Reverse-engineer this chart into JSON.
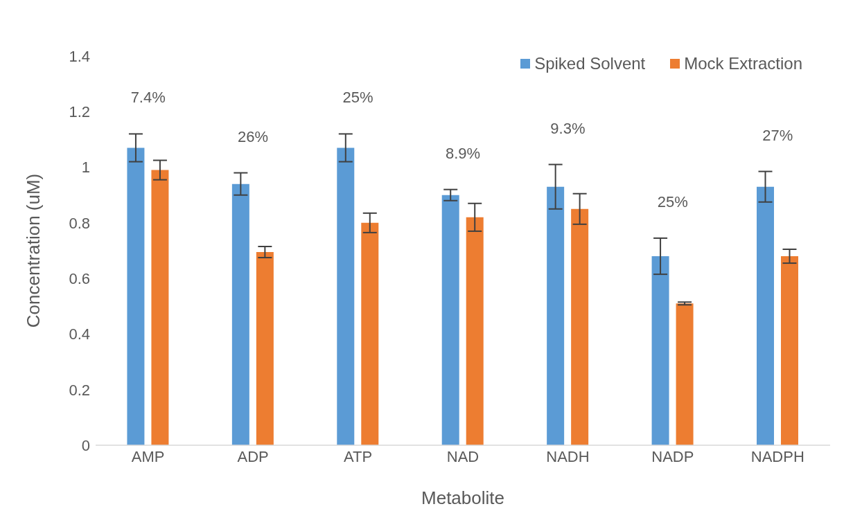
{
  "chart_data": {
    "type": "bar",
    "xlabel": "Metabolite",
    "ylabel": "Concentration (uM)",
    "categories": [
      "AMP",
      "ADP",
      "ATP",
      "NAD",
      "NADH",
      "NADP",
      "NADPH"
    ],
    "series": [
      {
        "name": "Spiked Solvent",
        "color": "#5b9bd5",
        "values": [
          1.07,
          0.94,
          1.07,
          0.9,
          0.93,
          0.68,
          0.93
        ],
        "errors": [
          0.05,
          0.04,
          0.05,
          0.02,
          0.08,
          0.065,
          0.055
        ]
      },
      {
        "name": "Mock Extraction",
        "color": "#ed7d31",
        "values": [
          0.99,
          0.695,
          0.8,
          0.82,
          0.85,
          0.51,
          0.68
        ],
        "errors": [
          0.035,
          0.02,
          0.035,
          0.05,
          0.055,
          0.005,
          0.025
        ]
      }
    ],
    "ylim": [
      0,
      1.4
    ],
    "yticks": [
      0,
      0.2,
      0.4,
      0.6,
      0.8,
      1,
      1.2,
      1.4
    ],
    "grid": false,
    "legend": "top right",
    "annotations": [
      "7.4%",
      "26%",
      "25%",
      "8.9%",
      "9.3%",
      "25%",
      "27%"
    ]
  }
}
